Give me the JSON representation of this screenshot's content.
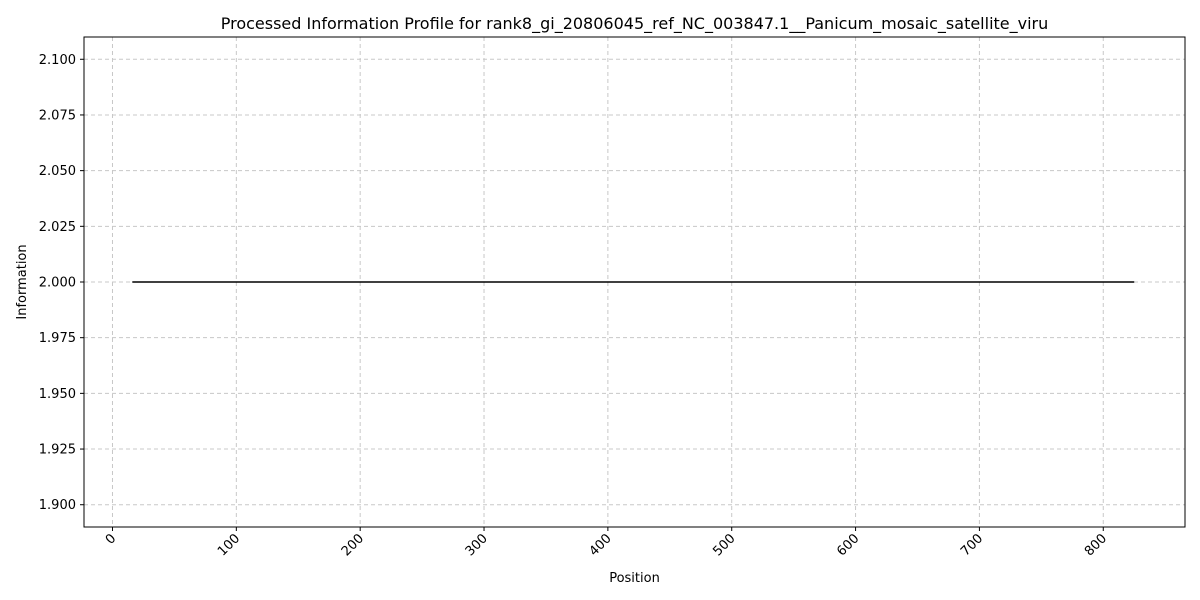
{
  "chart_data": {
    "type": "line",
    "title": "Processed Information Profile for rank8_gi_20806045_ref_NC_003847.1__Panicum_mosaic_satellite_viru",
    "xlabel": "Position",
    "ylabel": "Information",
    "xlim": [
      -23,
      866
    ],
    "ylim": [
      1.89,
      2.11
    ],
    "xticks": [
      0,
      100,
      200,
      300,
      400,
      500,
      600,
      700,
      800
    ],
    "yticks": [
      1.9,
      1.925,
      1.95,
      1.975,
      2.0,
      2.025,
      2.05,
      2.075,
      2.1
    ],
    "ytick_labels": [
      "1.900",
      "1.925",
      "1.950",
      "1.975",
      "2.000",
      "2.025",
      "2.050",
      "2.075",
      "2.100"
    ],
    "grid": true,
    "line_color": "#000000",
    "series": [
      {
        "x": [
          16,
          825
        ],
        "y": [
          2.0,
          2.0
        ]
      }
    ]
  }
}
